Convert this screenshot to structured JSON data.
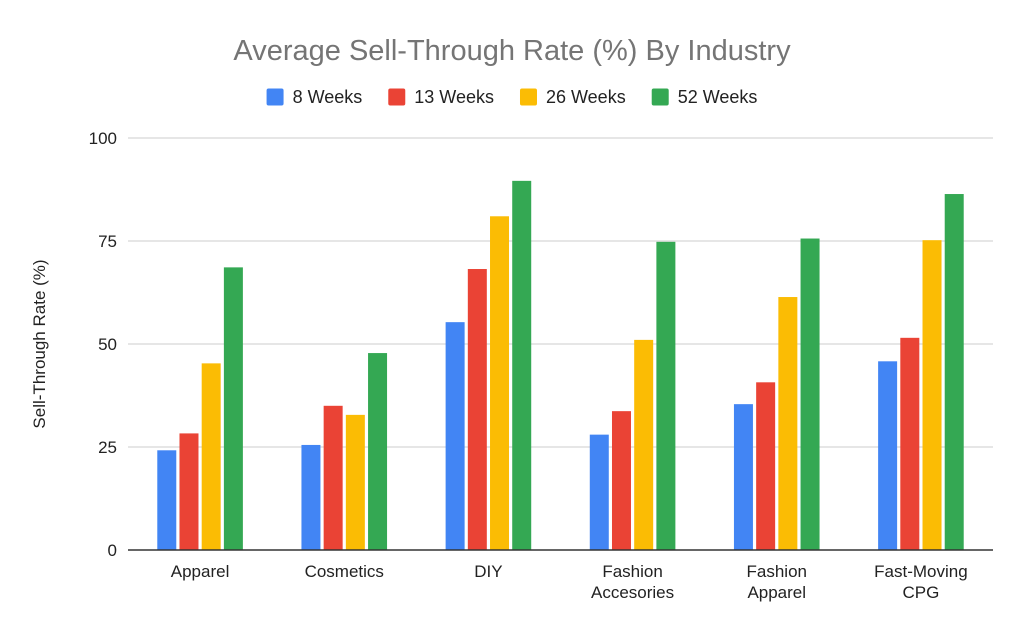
{
  "chart_data": {
    "type": "bar",
    "title": "Average Sell-Through Rate (%) By Industry",
    "xlabel": "",
    "ylabel": "Sell-Through Rate (%)",
    "ylim": [
      0,
      100
    ],
    "yticks": [
      "0",
      "25",
      "50",
      "75",
      "100"
    ],
    "yticks_values": [
      0,
      25,
      50,
      75,
      100
    ],
    "grid": true,
    "legend_position": "top",
    "categories": [
      [
        "Apparel"
      ],
      [
        "Cosmetics"
      ],
      [
        "DIY"
      ],
      [
        "Fashion",
        "Accesories"
      ],
      [
        "Fashion",
        "Apparel"
      ],
      [
        "Fast-Moving",
        "CPG"
      ]
    ],
    "series": [
      {
        "name": "8 Weeks",
        "color": "#4285f4",
        "values": [
          24.2,
          25.5,
          55.3,
          28.0,
          35.4,
          45.8
        ]
      },
      {
        "name": "13 Weeks",
        "color": "#ea4335",
        "values": [
          28.3,
          35.0,
          68.2,
          33.7,
          40.7,
          51.5
        ]
      },
      {
        "name": "26 Weeks",
        "color": "#fbbc04",
        "values": [
          45.3,
          32.8,
          81.0,
          51.0,
          61.4,
          75.2
        ]
      },
      {
        "name": "52 Weeks",
        "color": "#34a853",
        "values": [
          68.6,
          47.8,
          89.6,
          74.8,
          75.6,
          86.4
        ]
      }
    ]
  }
}
